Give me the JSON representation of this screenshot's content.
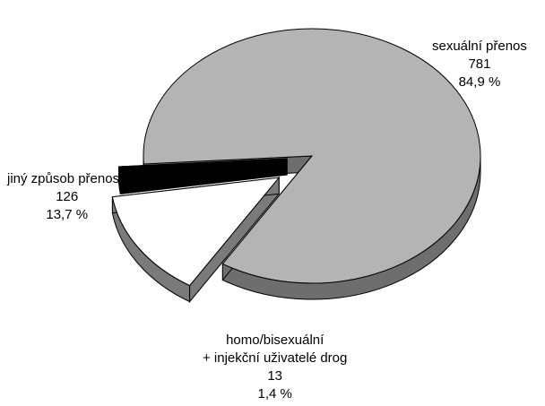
{
  "chart_data": {
    "type": "pie",
    "title": "",
    "slices": [
      {
        "label": "sexuální přenos",
        "value": 781,
        "percent": "84,9 %",
        "color": "#b4b4b4",
        "side_color": "#6e6e6e",
        "exploded": false
      },
      {
        "label": "homo/bisexuální + injekční uživatelé drog",
        "value": 13,
        "percent": "1,4 %",
        "color": "#000000",
        "side_color": "#000000",
        "exploded": true
      },
      {
        "label": "jiný způsob přenosu",
        "value": 126,
        "percent": "13,7 %",
        "color": "#ffffff",
        "side_color": "#7a7a7a",
        "exploded": true
      }
    ]
  },
  "labels": {
    "sexual": {
      "name": "sexuální přenos",
      "value": "781",
      "percent": "84,9 %"
    },
    "homo": {
      "name_line1": "homo/bisexuální",
      "name_line2": "+ injekční uživatelé drog",
      "value": "13",
      "percent": "1,4 %"
    },
    "other": {
      "name": "jiný způsob přenosu",
      "value": "126",
      "percent": "13,7 %"
    }
  }
}
